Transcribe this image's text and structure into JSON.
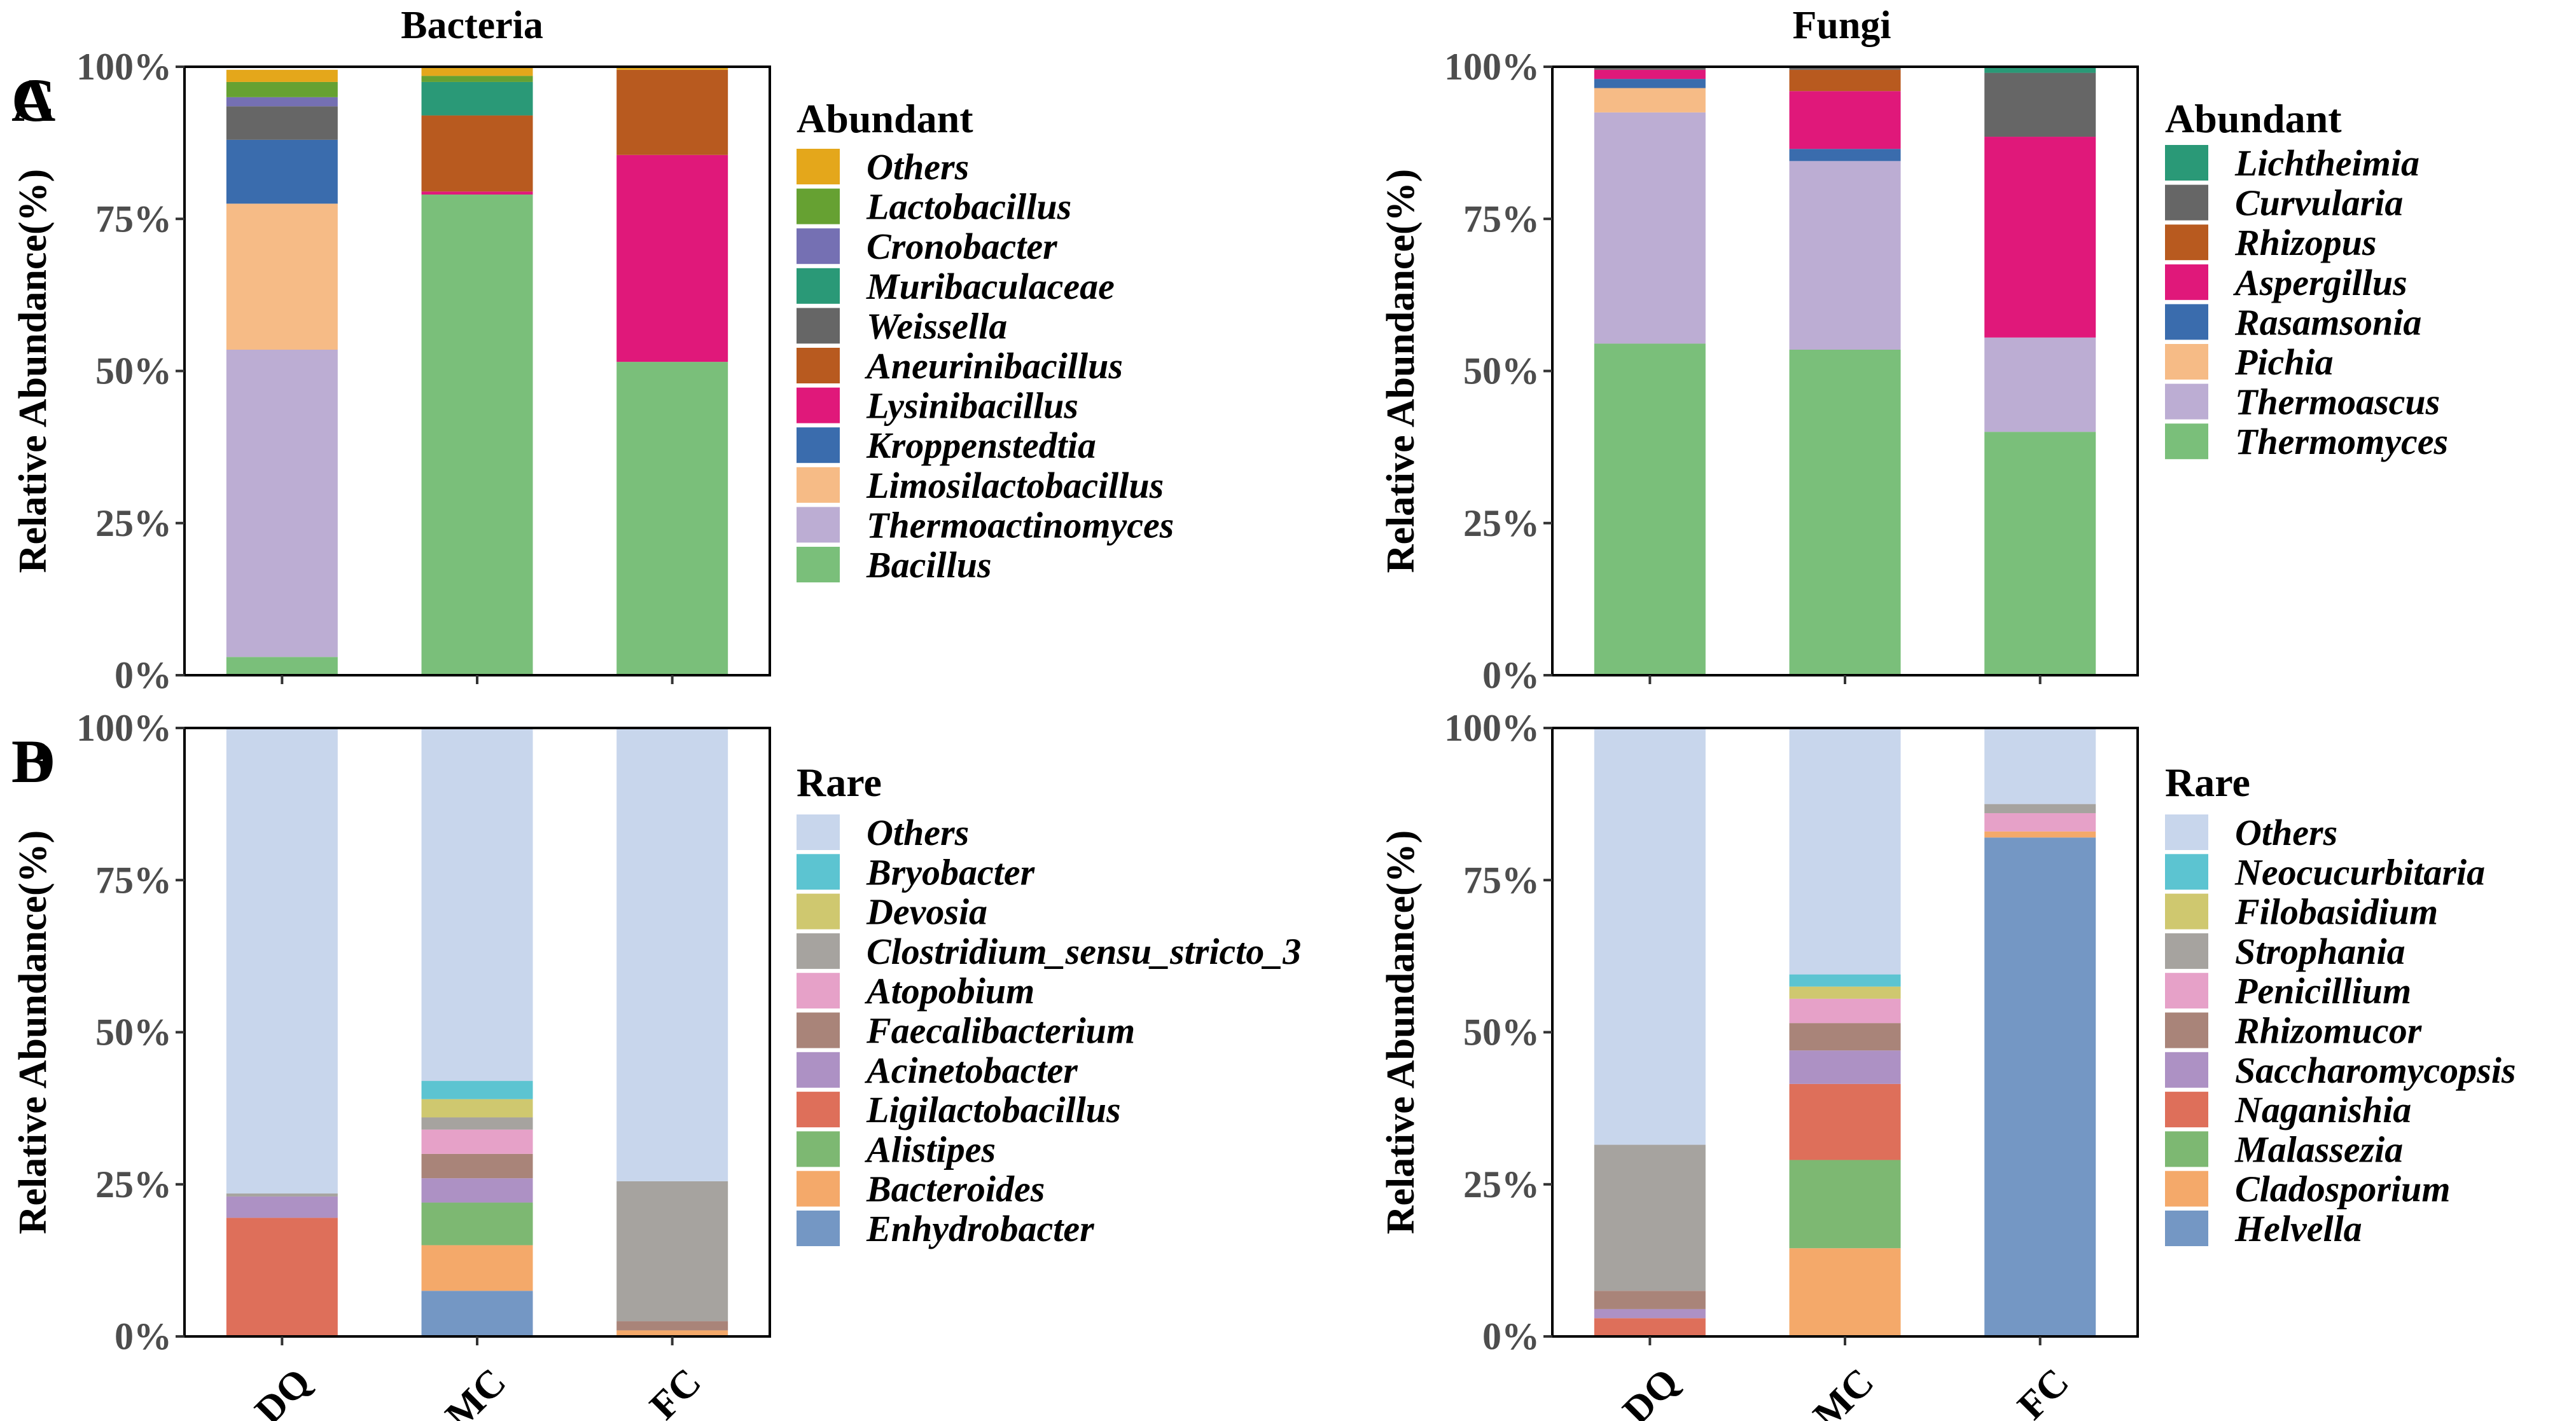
{
  "figure": {
    "column_titles": [
      "Bacteria",
      "Fungi"
    ]
  },
  "chart_data": [
    {
      "panel": "A",
      "type": "bar",
      "stacked": true,
      "column_title": "Bacteria",
      "title": "",
      "xlabel": "",
      "ylabel": "Relative Abundance(%)",
      "ylim": [
        0,
        100
      ],
      "yticks": [
        "0%",
        "25%",
        "50%",
        "75%",
        "100%"
      ],
      "categories": [
        "DQ",
        "MC",
        "FC"
      ],
      "show_xticks": false,
      "legend_title": "Abundant",
      "legend_position": "right",
      "series": [
        {
          "name": "Bacillus",
          "color": "#7ABF7A",
          "values": [
            3,
            79,
            51.5
          ]
        },
        {
          "name": "Thermoactinomyces",
          "color": "#BCADD3",
          "values": [
            50.5,
            0,
            0
          ]
        },
        {
          "name": "Limosilactobacillus",
          "color": "#F6BB86",
          "values": [
            24,
            0,
            0
          ]
        },
        {
          "name": "Kroppenstedtia",
          "color": "#3A6CAD",
          "values": [
            10.5,
            0,
            0
          ]
        },
        {
          "name": "Lysinibacillus",
          "color": "#E0187A",
          "values": [
            0,
            0.5,
            34
          ]
        },
        {
          "name": "Aneurinibacillus",
          "color": "#B85A1F",
          "values": [
            0,
            12.5,
            14
          ]
        },
        {
          "name": "Weissella",
          "color": "#666666",
          "values": [
            5.5,
            0,
            0
          ]
        },
        {
          "name": "Muribaculaceae",
          "color": "#2A9977",
          "values": [
            0,
            5.5,
            0
          ]
        },
        {
          "name": "Cronobacter",
          "color": "#7570B3",
          "values": [
            1.5,
            0,
            0
          ]
        },
        {
          "name": "Lactobacillus",
          "color": "#66A132",
          "values": [
            2.5,
            1,
            0
          ]
        },
        {
          "name": "Others",
          "color": "#E4A71B",
          "values": [
            2,
            1.5,
            0.5
          ]
        }
      ]
    },
    {
      "panel": "B",
      "type": "bar",
      "stacked": true,
      "column_title": "",
      "title": "",
      "xlabel": "",
      "ylabel": "Relative Abundance(%)",
      "ylim": [
        0,
        100
      ],
      "yticks": [
        "0%",
        "25%",
        "50%",
        "75%",
        "100%"
      ],
      "categories": [
        "DQ",
        "MC",
        "FC"
      ],
      "show_xticks": true,
      "legend_title": "Rare",
      "legend_position": "right",
      "series": [
        {
          "name": "Enhydrobacter",
          "color": "#7497C4",
          "values": [
            0,
            7.5,
            0
          ]
        },
        {
          "name": "Bacteroides",
          "color": "#F4A96A",
          "values": [
            0,
            7.5,
            1
          ]
        },
        {
          "name": "Alistipes",
          "color": "#7DB872",
          "values": [
            0,
            7,
            0
          ]
        },
        {
          "name": "Ligilactobacillus",
          "color": "#DE6F5A",
          "values": [
            19.5,
            0,
            0
          ]
        },
        {
          "name": "Acinetobacter",
          "color": "#AD91C4",
          "values": [
            3.5,
            4,
            0
          ]
        },
        {
          "name": "Faecalibacterium",
          "color": "#A98479",
          "values": [
            0,
            4,
            1.5
          ]
        },
        {
          "name": "Atopobium",
          "color": "#E6A1C8",
          "values": [
            0,
            4,
            0
          ]
        },
        {
          "name": "Clostridium_sensu_stricto_3",
          "color": "#A6A39F",
          "values": [
            0.5,
            2,
            23
          ]
        },
        {
          "name": "Devosia",
          "color": "#CFC86F",
          "values": [
            0,
            3,
            0
          ]
        },
        {
          "name": "Bryobacter",
          "color": "#5CC4D1",
          "values": [
            0,
            3,
            0
          ]
        },
        {
          "name": "Others",
          "color": "#C8D6EC",
          "values": [
            76.5,
            58,
            74.5
          ]
        }
      ]
    },
    {
      "panel": "C",
      "type": "bar",
      "stacked": true,
      "column_title": "Fungi",
      "title": "",
      "xlabel": "",
      "ylabel": "Relative Abundance(%)",
      "ylim": [
        0,
        100
      ],
      "yticks": [
        "0%",
        "25%",
        "50%",
        "75%",
        "100%"
      ],
      "categories": [
        "DQ",
        "MC",
        "FC"
      ],
      "show_xticks": false,
      "legend_title": "Abundant",
      "legend_position": "right",
      "series": [
        {
          "name": "Thermomyces",
          "color": "#7ABF7A",
          "values": [
            54.5,
            53.5,
            40
          ]
        },
        {
          "name": "Thermoascus",
          "color": "#BCADD3",
          "values": [
            38,
            31,
            15.5
          ]
        },
        {
          "name": "Pichia",
          "color": "#F6BB86",
          "values": [
            4,
            0,
            0
          ]
        },
        {
          "name": "Rasamsonia",
          "color": "#3A6CAD",
          "values": [
            1.5,
            2,
            0
          ]
        },
        {
          "name": "Aspergillus",
          "color": "#E0187A",
          "values": [
            1.5,
            9.5,
            33
          ]
        },
        {
          "name": "Rhizopus",
          "color": "#B85A1F",
          "values": [
            0,
            3.5,
            0
          ]
        },
        {
          "name": "Curvularia",
          "color": "#666666",
          "values": [
            0.5,
            0.5,
            10.5
          ]
        },
        {
          "name": "Lichtheimia",
          "color": "#2A9977",
          "values": [
            0,
            0,
            1
          ]
        }
      ]
    },
    {
      "panel": "D",
      "type": "bar",
      "stacked": true,
      "column_title": "",
      "title": "",
      "xlabel": "",
      "ylabel": "Relative Abundance(%)",
      "ylim": [
        0,
        100
      ],
      "yticks": [
        "0%",
        "25%",
        "50%",
        "75%",
        "100%"
      ],
      "categories": [
        "DQ",
        "MC",
        "FC"
      ],
      "show_xticks": true,
      "legend_title": "Rare",
      "legend_position": "right",
      "series": [
        {
          "name": "Helvella",
          "color": "#7497C4",
          "values": [
            0,
            0,
            82
          ]
        },
        {
          "name": "Cladosporium",
          "color": "#F4A96A",
          "values": [
            0,
            14.5,
            1
          ]
        },
        {
          "name": "Malassezia",
          "color": "#7DB872",
          "values": [
            0,
            14.5,
            0
          ]
        },
        {
          "name": "Naganishia",
          "color": "#DE6F5A",
          "values": [
            3,
            12.5,
            0
          ]
        },
        {
          "name": "Saccharomycopsis",
          "color": "#AD91C4",
          "values": [
            1.5,
            5.5,
            0
          ]
        },
        {
          "name": "Rhizomucor",
          "color": "#A98479",
          "values": [
            3,
            4.5,
            0
          ]
        },
        {
          "name": "Penicillium",
          "color": "#E6A1C8",
          "values": [
            0,
            4,
            3
          ]
        },
        {
          "name": "Strophania",
          "color": "#A6A39F",
          "values": [
            24,
            0,
            1.5
          ]
        },
        {
          "name": "Filobasidium",
          "color": "#CFC86F",
          "values": [
            0,
            2,
            0
          ]
        },
        {
          "name": "Neocucurbitaria",
          "color": "#5CC4D1",
          "values": [
            0,
            2,
            0
          ]
        },
        {
          "name": "Others",
          "color": "#C8D6EC",
          "values": [
            68.5,
            40.5,
            12.5
          ]
        }
      ]
    }
  ]
}
